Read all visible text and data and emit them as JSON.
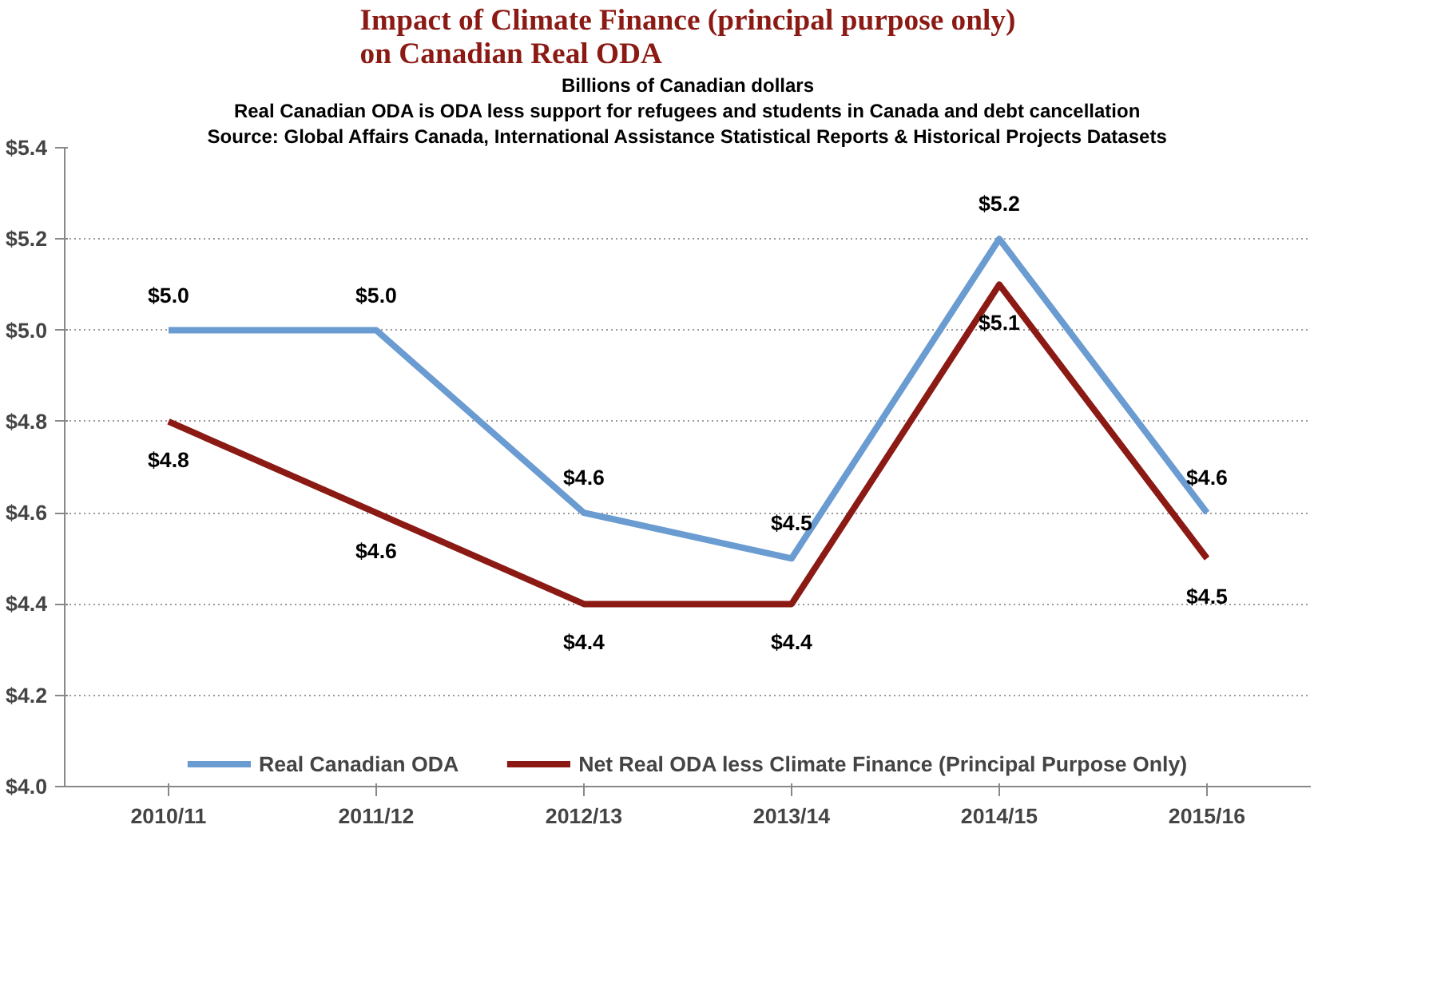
{
  "chart_data": {
    "type": "line",
    "title": "Impact of Climate Finance (principal purpose only)\non Canadian Real ODA",
    "subtitle": "Billions of Canadian dollars",
    "annotations": [
      "Real Canadian ODA is ODA less support for refugees and students in Canada and debt cancellation",
      "Source: Global Affairs Canada, International Assistance Statistical Reports & Historical Projects Datasets"
    ],
    "categories": [
      "2010/11",
      "2011/12",
      "2012/13",
      "2013/14",
      "2014/15",
      "2015/16"
    ],
    "series": [
      {
        "name": "Real Canadian ODA",
        "color": "#6a9bd1",
        "values": [
          5.0,
          5.0,
          4.6,
          4.5,
          5.2,
          4.6
        ],
        "value_labels": [
          "$5.0",
          "$5.0",
          "$4.6",
          "$4.5",
          "$5.2",
          "$4.6"
        ]
      },
      {
        "name": "Net Real ODA less Climate Finance (Principal Purpose Only)",
        "color": "#8b1a14",
        "values": [
          4.8,
          4.6,
          4.4,
          4.4,
          5.1,
          4.5
        ],
        "value_labels": [
          "$4.8",
          "$4.6",
          "$4.4",
          "$4.4",
          "$5.1",
          "$4.5"
        ]
      }
    ],
    "ylim": [
      4.0,
      5.4
    ],
    "yticks": [
      {
        "value": 4.0,
        "label": "$4.0"
      },
      {
        "value": 4.2,
        "label": "$4.2"
      },
      {
        "value": 4.4,
        "label": "$4.4"
      },
      {
        "value": 4.6,
        "label": "$4.6"
      },
      {
        "value": 4.8,
        "label": "$4.8"
      },
      {
        "value": 5.0,
        "label": "$5.0"
      },
      {
        "value": 5.2,
        "label": "$5.2"
      },
      {
        "value": 5.4,
        "label": "$5.4"
      }
    ],
    "grid": "y",
    "legend": "bottom",
    "marker": "none",
    "line_style": "solid"
  }
}
